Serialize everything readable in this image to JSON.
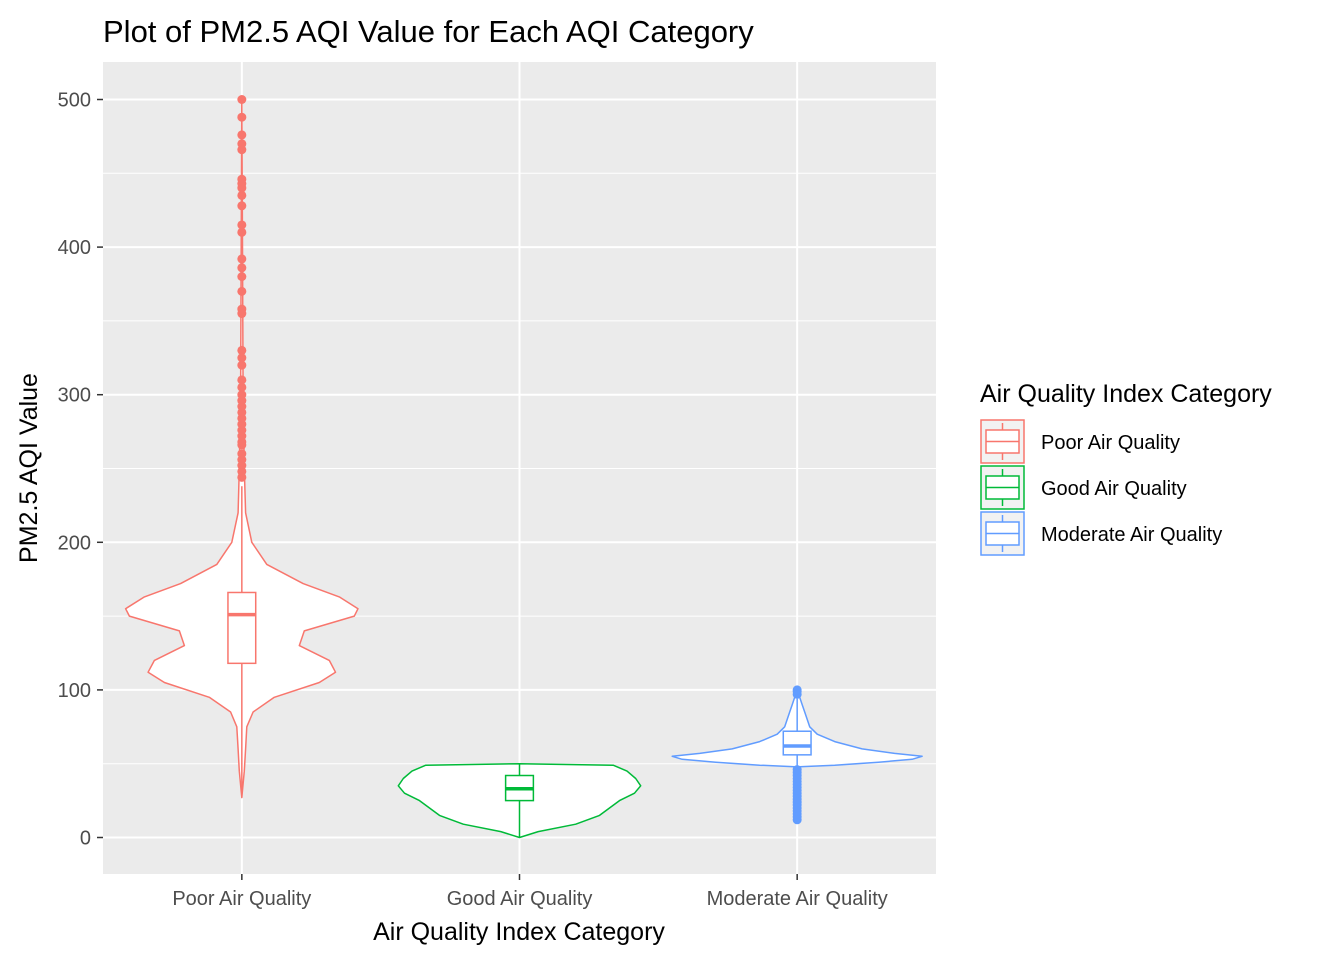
{
  "chart_data": {
    "type": "violin",
    "title": "Plot of PM2.5 AQI Value for Each AQI Category",
    "xlabel": "Air Quality Index Category",
    "ylabel": "PM2.5 AQI Value",
    "ylim": [
      -25,
      525
    ],
    "yticks": [
      0,
      100,
      200,
      300,
      400,
      500
    ],
    "grid": true,
    "legend_position": "right",
    "legend_title": "Air Quality Index Category",
    "categories": [
      "Poor Air Quality",
      "Good Air Quality",
      "Moderate Air Quality"
    ],
    "series": [
      {
        "name": "Poor Air Quality",
        "color": "#F8766D",
        "violin_min": 27,
        "violin_max": 500,
        "box": {
          "lower_whisker": 27,
          "q1": 118,
          "median": 151,
          "q3": 166,
          "upper_whisker": 238
        },
        "density": [
          [
            27,
            0.0
          ],
          [
            45,
            0.02
          ],
          [
            60,
            0.03
          ],
          [
            75,
            0.04
          ],
          [
            85,
            0.09
          ],
          [
            95,
            0.26
          ],
          [
            105,
            0.62
          ],
          [
            112,
            0.75
          ],
          [
            120,
            0.7
          ],
          [
            130,
            0.46
          ],
          [
            140,
            0.5
          ],
          [
            150,
            0.9
          ],
          [
            155,
            0.93
          ],
          [
            163,
            0.78
          ],
          [
            172,
            0.49
          ],
          [
            185,
            0.2
          ],
          [
            200,
            0.08
          ],
          [
            220,
            0.03
          ],
          [
            250,
            0.02
          ],
          [
            300,
            0.01
          ],
          [
            400,
            0.005
          ],
          [
            500,
            0.0
          ]
        ],
        "outliers": [
          244,
          248,
          252,
          256,
          260,
          266,
          268,
          272,
          276,
          280,
          284,
          288,
          292,
          296,
          300,
          305,
          310,
          320,
          325,
          330,
          355,
          358,
          370,
          380,
          386,
          392,
          410,
          415,
          428,
          435,
          440,
          443,
          446,
          466,
          470,
          476,
          488,
          500
        ]
      },
      {
        "name": "Good Air Quality",
        "color": "#00BA38",
        "violin_min": 0,
        "violin_max": 50,
        "box": {
          "lower_whisker": 0,
          "q1": 25,
          "median": 33,
          "q3": 42,
          "upper_whisker": 50
        },
        "density": [
          [
            0,
            0.0
          ],
          [
            4,
            0.15
          ],
          [
            9,
            0.45
          ],
          [
            15,
            0.64
          ],
          [
            20,
            0.72
          ],
          [
            25,
            0.8
          ],
          [
            30,
            0.92
          ],
          [
            35,
            0.97
          ],
          [
            40,
            0.93
          ],
          [
            45,
            0.86
          ],
          [
            49,
            0.75
          ],
          [
            50,
            0.0
          ]
        ],
        "outliers": []
      },
      {
        "name": "Moderate Air Quality",
        "color": "#619CFF",
        "violin_min": 12,
        "violin_max": 100,
        "box": {
          "lower_whisker": 48,
          "q1": 56,
          "median": 62,
          "q3": 72,
          "upper_whisker": 94
        },
        "density": [
          [
            12,
            0.0
          ],
          [
            48,
            0.02
          ],
          [
            49,
            0.3
          ],
          [
            51,
            0.65
          ],
          [
            53,
            0.92
          ],
          [
            55,
            1.0
          ],
          [
            57,
            0.78
          ],
          [
            60,
            0.52
          ],
          [
            65,
            0.3
          ],
          [
            70,
            0.16
          ],
          [
            75,
            0.1
          ],
          [
            80,
            0.08
          ],
          [
            85,
            0.06
          ],
          [
            90,
            0.04
          ],
          [
            95,
            0.02
          ],
          [
            100,
            0.0
          ]
        ],
        "outliers": [
          12,
          14,
          16,
          18,
          20,
          22,
          24,
          26,
          28,
          30,
          32,
          34,
          36,
          38,
          40,
          42,
          44,
          46,
          97,
          99,
          100
        ]
      }
    ]
  }
}
